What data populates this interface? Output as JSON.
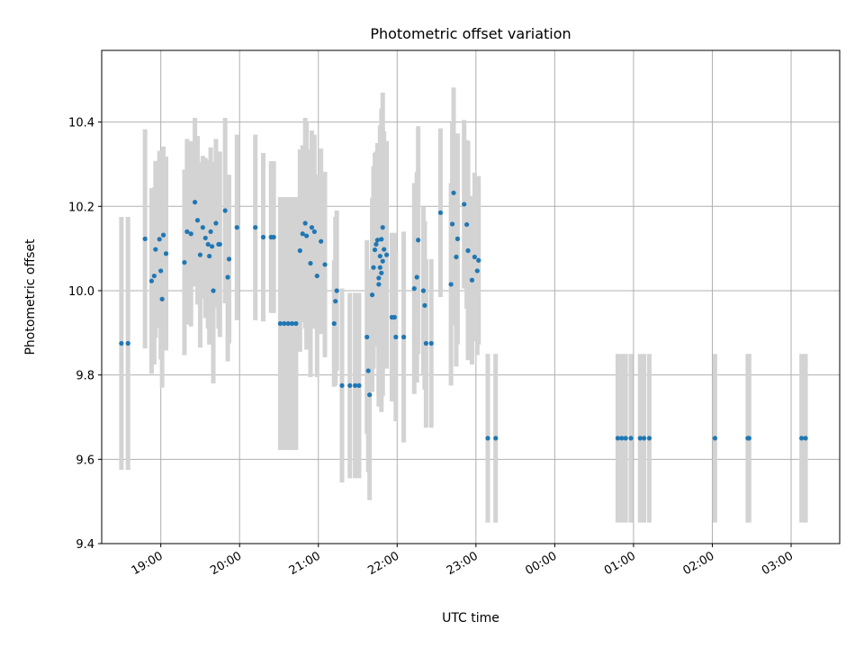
{
  "chart_data": {
    "type": "scatter",
    "title": "Photometric offset variation",
    "xlabel": "UTC time",
    "ylabel": "Photometric offset",
    "ylim": [
      9.4,
      10.57
    ],
    "xlim": [
      "18:15",
      "03:37"
    ],
    "grid": true,
    "legend": "none",
    "colors": {
      "point": "#1f77b4",
      "errorbar": "#d3d3d3",
      "grid": "#b0b0b0"
    },
    "xticks": [
      "19:00",
      "20:00",
      "21:00",
      "22:00",
      "23:00",
      "00:00",
      "01:00",
      "02:00",
      "03:00"
    ],
    "yticks": [
      9.4,
      9.6,
      9.8,
      10.0,
      10.2,
      10.4
    ],
    "ytick_labels": [
      "9.4",
      "9.6",
      "9.8",
      "10.0",
      "10.2",
      "10.4"
    ],
    "points": [
      [
        "18:30",
        9.875,
        0.3
      ],
      [
        "18:35",
        9.875,
        0.3
      ],
      [
        "18:48",
        10.123,
        0.26
      ],
      [
        "18:53",
        10.023,
        0.22
      ],
      [
        "18:55",
        10.035,
        0.21
      ],
      [
        "18:56",
        10.098,
        0.21
      ],
      [
        "18:59",
        10.122,
        0.21
      ],
      [
        "19:00",
        10.047,
        0.21
      ],
      [
        "19:01",
        9.98,
        0.21
      ],
      [
        "19:02",
        10.132,
        0.21
      ],
      [
        "19:04",
        10.088,
        0.23
      ],
      [
        "19:18",
        10.067,
        0.22
      ],
      [
        "19:20",
        10.14,
        0.22
      ],
      [
        "19:23",
        10.135,
        0.22
      ],
      [
        "19:26",
        10.21,
        0.2
      ],
      [
        "19:28",
        10.167,
        0.2
      ],
      [
        "19:30",
        10.085,
        0.22
      ],
      [
        "19:32",
        10.15,
        0.17
      ],
      [
        "19:34",
        10.125,
        0.19
      ],
      [
        "19:36",
        10.11,
        0.2
      ],
      [
        "19:37",
        10.082,
        0.21
      ],
      [
        "19:38",
        10.14,
        0.2
      ],
      [
        "19:39",
        10.105,
        0.2
      ],
      [
        "19:40",
        10.0,
        0.22
      ],
      [
        "19:42",
        10.16,
        0.2
      ],
      [
        "19:44",
        10.11,
        0.2
      ],
      [
        "19:45",
        10.11,
        0.22
      ],
      [
        "19:49",
        10.19,
        0.22
      ],
      [
        "19:51",
        10.032,
        0.2
      ],
      [
        "19:52",
        10.075,
        0.2
      ],
      [
        "19:58",
        10.15,
        0.22
      ],
      [
        "20:12",
        10.15,
        0.22
      ],
      [
        "20:18",
        10.127,
        0.2
      ],
      [
        "20:24",
        10.127,
        0.18
      ],
      [
        "20:26",
        10.127,
        0.18
      ],
      [
        "20:31",
        9.922,
        0.3
      ],
      [
        "20:34",
        9.922,
        0.3
      ],
      [
        "20:37",
        9.922,
        0.3
      ],
      [
        "20:40",
        9.922,
        0.3
      ],
      [
        "20:43",
        9.922,
        0.3
      ],
      [
        "20:46",
        10.095,
        0.24
      ],
      [
        "20:48",
        10.135,
        0.21
      ],
      [
        "20:50",
        10.16,
        0.25
      ],
      [
        "20:51",
        10.13,
        0.27
      ],
      [
        "20:54",
        10.065,
        0.27
      ],
      [
        "20:55",
        10.15,
        0.23
      ],
      [
        "20:57",
        10.14,
        0.23
      ],
      [
        "20:59",
        10.035,
        0.24
      ],
      [
        "21:02",
        10.117,
        0.22
      ],
      [
        "21:05",
        10.062,
        0.22
      ],
      [
        "21:12",
        9.922,
        0.15
      ],
      [
        "21:13",
        9.975,
        0.2
      ],
      [
        "21:14",
        10.0,
        0.19
      ],
      [
        "21:18",
        9.775,
        0.23
      ],
      [
        "21:24",
        9.775,
        0.22
      ],
      [
        "21:28",
        9.775,
        0.22
      ],
      [
        "21:31",
        9.775,
        0.22
      ],
      [
        "21:37",
        9.89,
        0.23
      ],
      [
        "21:38",
        9.81,
        0.24
      ],
      [
        "21:39",
        9.753,
        0.25
      ],
      [
        "21:41",
        9.99,
        0.23
      ],
      [
        "21:42",
        10.055,
        0.24
      ],
      [
        "21:43",
        10.097,
        0.23
      ],
      [
        "21:44",
        10.11,
        0.22
      ],
      [
        "21:45",
        10.12,
        0.23
      ],
      [
        "21:46",
        10.03,
        0.28
      ],
      [
        "21:46",
        10.015,
        0.29
      ],
      [
        "21:47",
        10.055,
        0.3
      ],
      [
        "21:47",
        10.082,
        0.31
      ],
      [
        "21:48",
        10.122,
        0.31
      ],
      [
        "21:48",
        10.042,
        0.33
      ],
      [
        "21:49",
        10.07,
        0.32
      ],
      [
        "21:49",
        10.15,
        0.32
      ],
      [
        "21:50",
        10.098,
        0.28
      ],
      [
        "21:52",
        10.085,
        0.27
      ],
      [
        "21:56",
        9.937,
        0.2
      ],
      [
        "21:58",
        9.937,
        0.2
      ],
      [
        "21:59",
        9.89,
        0.2
      ],
      [
        "22:05",
        9.89,
        0.25
      ],
      [
        "22:13",
        10.005,
        0.25
      ],
      [
        "22:15",
        10.032,
        0.25
      ],
      [
        "22:16",
        10.12,
        0.27
      ],
      [
        "22:20",
        10.0,
        0.2
      ],
      [
        "22:21",
        9.965,
        0.2
      ],
      [
        "22:22",
        9.875,
        0.2
      ],
      [
        "22:26",
        9.875,
        0.2
      ],
      [
        "22:33",
        10.185,
        0.2
      ],
      [
        "22:41",
        10.015,
        0.24
      ],
      [
        "22:42",
        10.158,
        0.24
      ],
      [
        "22:43",
        10.232,
        0.25
      ],
      [
        "22:45",
        10.08,
        0.26
      ],
      [
        "22:46",
        10.123,
        0.25
      ],
      [
        "22:51",
        10.205,
        0.2
      ],
      [
        "22:53",
        10.157,
        0.2
      ],
      [
        "22:54",
        10.095,
        0.26
      ],
      [
        "22:57",
        10.025,
        0.2
      ],
      [
        "22:59",
        10.08,
        0.2
      ],
      [
        "23:01",
        10.047,
        0.2
      ],
      [
        "23:02",
        10.072,
        0.2
      ],
      [
        "23:09",
        9.65,
        0.2
      ],
      [
        "23:15",
        9.65,
        0.2
      ],
      [
        "00:48",
        9.65,
        0.2
      ],
      [
        "00:51",
        9.65,
        0.2
      ],
      [
        "00:54",
        9.65,
        0.2
      ],
      [
        "00:58",
        9.65,
        0.2
      ],
      [
        "01:05",
        9.65,
        0.2
      ],
      [
        "01:08",
        9.65,
        0.2
      ],
      [
        "01:12",
        9.65,
        0.2
      ],
      [
        "02:02",
        9.65,
        0.2
      ],
      [
        "02:27",
        9.65,
        0.2
      ],
      [
        "02:28",
        9.65,
        0.2
      ],
      [
        "03:08",
        9.65,
        0.2
      ],
      [
        "03:11",
        9.65,
        0.2
      ]
    ]
  }
}
